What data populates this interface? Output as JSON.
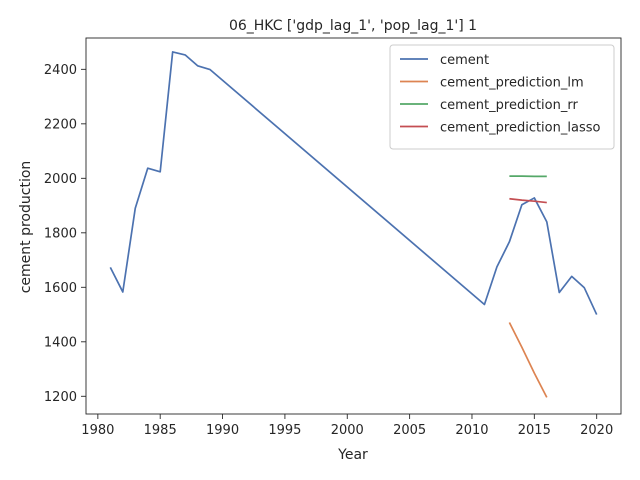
{
  "chart_data": {
    "type": "line",
    "title": "06_HKC ['gdp_lag_1', 'pop_lag_1'] 1",
    "xlabel": "Year",
    "ylabel": "cement production",
    "xlim": [
      1979.05,
      2021.95
    ],
    "ylim": [
      1135,
      2515
    ],
    "xticks": [
      1980,
      1985,
      1990,
      1995,
      2000,
      2005,
      2010,
      2015,
      2020
    ],
    "yticks": [
      1200,
      1400,
      1600,
      1800,
      2000,
      2200,
      2400
    ],
    "grid": false,
    "legend_position": "upper right",
    "series": [
      {
        "name": "cement",
        "color": "#4c72b0",
        "x": [
          1981,
          1982,
          1983,
          1984,
          1985,
          1986,
          1987,
          1988,
          1989,
          2011,
          2012,
          2013,
          2014,
          2015,
          2016,
          2017,
          2018,
          2019,
          2020
        ],
        "y": [
          1673,
          1583,
          1890,
          2037,
          2024,
          2464,
          2453,
          2413,
          2399,
          1537,
          1675,
          1767,
          1903,
          1928,
          1840,
          1581,
          1640,
          1599,
          1500
        ]
      },
      {
        "name": "cement_prediction_lm",
        "color": "#dd8452",
        "x": [
          2013,
          2014,
          2015,
          2016
        ],
        "y": [
          1471,
          1380,
          1285,
          1196
        ]
      },
      {
        "name": "cement_prediction_rr",
        "color": "#55a868",
        "x": [
          2013,
          2014,
          2015,
          2016
        ],
        "y": [
          2008,
          2008,
          2007,
          2007
        ]
      },
      {
        "name": "cement_prediction_lasso",
        "color": "#c44e52",
        "x": [
          2013,
          2014,
          2015,
          2016
        ],
        "y": [
          1925,
          1920,
          1916,
          1911
        ]
      }
    ]
  }
}
